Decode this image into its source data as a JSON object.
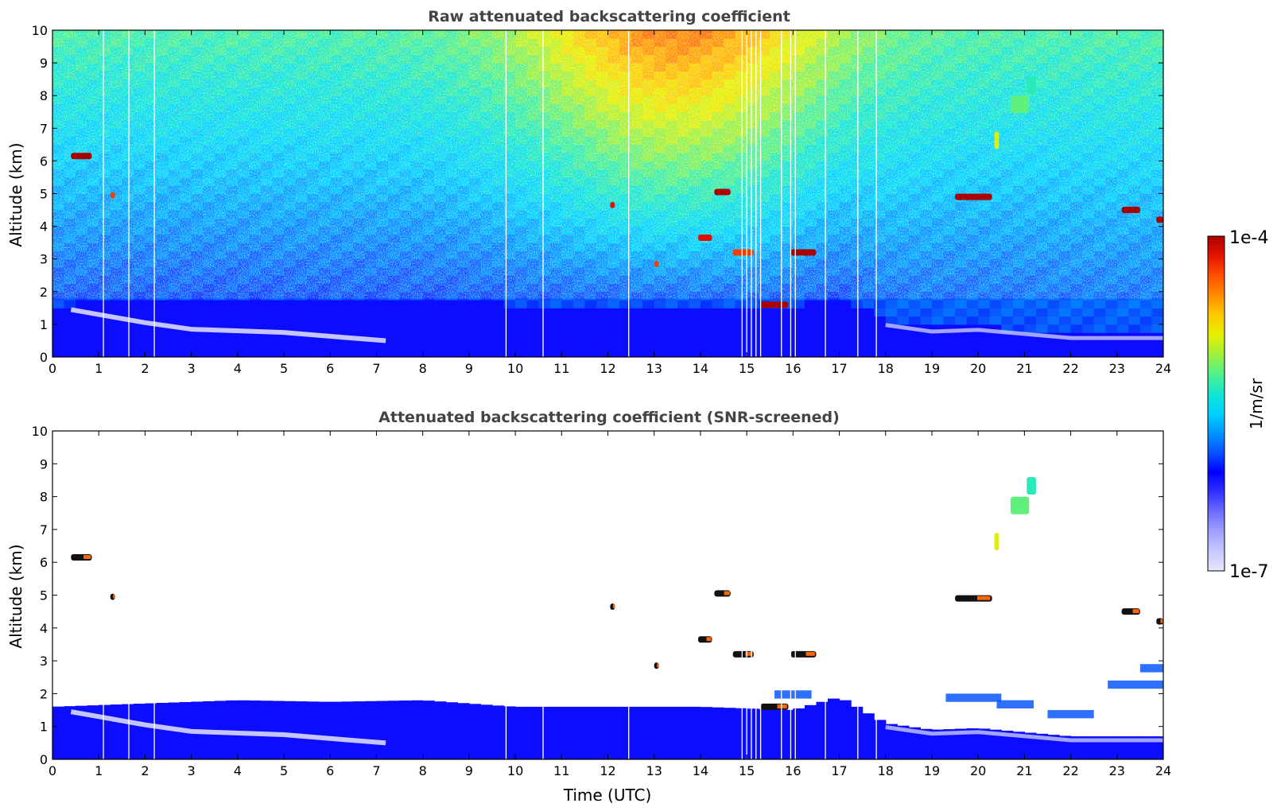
{
  "figure": {
    "colorbar": {
      "label": "1/m/sr",
      "max_label": "1e-4",
      "min_label": "1e-7",
      "scale": "log",
      "colormap": "jet-like with white-blue low end",
      "stops": [
        "#e6e6ff",
        "#c8c8ff",
        "#a0a0ff",
        "#6e6eff",
        "#3232ff",
        "#0000ff",
        "#0a50ff",
        "#0096ff",
        "#00d2ff",
        "#14e6d2",
        "#50f08c",
        "#a0f03c",
        "#e6f000",
        "#ffc800",
        "#ff8c00",
        "#ff5000",
        "#e61400",
        "#aa0000"
      ]
    }
  },
  "chart_data": [
    {
      "type": "heatmap",
      "title": "Raw attenuated backscattering coefficient",
      "xlabel": "",
      "ylabel": "Altitude (km)",
      "xlim": [
        0,
        24
      ],
      "ylim": [
        0,
        10
      ],
      "x_ticks": [
        "0",
        "1",
        "2",
        "3",
        "4",
        "5",
        "6",
        "7",
        "8",
        "9",
        "10",
        "11",
        "12",
        "13",
        "14",
        "15",
        "16",
        "17",
        "18",
        "19",
        "20",
        "21",
        "22",
        "23",
        "24"
      ],
      "y_ticks": [
        "0",
        "1",
        "2",
        "3",
        "4",
        "5",
        "6",
        "7",
        "8",
        "9",
        "10"
      ],
      "boundary_layer_top_km": [
        [
          0.0,
          1.6
        ],
        [
          2,
          1.7
        ],
        [
          4,
          1.8
        ],
        [
          6,
          1.75
        ],
        [
          8,
          1.8
        ],
        [
          10,
          1.6
        ],
        [
          12,
          1.6
        ],
        [
          14,
          1.6
        ],
        [
          16,
          1.5
        ],
        [
          17,
          1.9
        ],
        [
          18,
          1.1
        ],
        [
          19,
          0.9
        ],
        [
          20,
          0.95
        ],
        [
          22,
          0.7
        ],
        [
          24,
          0.7
        ]
      ],
      "residual_layer_km": [
        [
          0.4,
          1.45
        ],
        [
          2,
          1.05
        ],
        [
          3,
          0.85
        ],
        [
          5,
          0.75
        ],
        [
          6.3,
          0.6
        ],
        [
          7.2,
          0.5
        ]
      ],
      "data_gaps_utc": [
        1.1,
        1.65,
        2.2,
        9.8,
        10.6,
        12.45,
        14.9,
        15.0,
        15.1,
        15.2,
        15.3,
        15.75,
        15.95,
        16.05,
        16.7,
        17.4,
        17.8
      ],
      "clouds": [
        {
          "t0": 0.4,
          "t1": 0.85,
          "z": 6.15,
          "level": 1.0
        },
        {
          "t0": 1.25,
          "t1": 1.35,
          "z": 4.95,
          "level": 0.9
        },
        {
          "t0": 12.05,
          "t1": 12.15,
          "z": 4.65,
          "level": 0.95
        },
        {
          "t0": 13.0,
          "t1": 13.1,
          "z": 2.85,
          "level": 0.9
        },
        {
          "t0": 13.95,
          "t1": 14.25,
          "z": 3.65,
          "level": 0.95
        },
        {
          "t0": 14.3,
          "t1": 14.65,
          "z": 5.05,
          "level": 1.0
        },
        {
          "t0": 14.7,
          "t1": 15.15,
          "z": 3.2,
          "level": 0.9
        },
        {
          "t0": 15.3,
          "t1": 15.9,
          "z": 1.6,
          "level": 1.0
        },
        {
          "t0": 15.95,
          "t1": 16.5,
          "z": 3.2,
          "level": 1.0
        },
        {
          "t0": 19.5,
          "t1": 20.3,
          "z": 4.9,
          "level": 1.0
        },
        {
          "t0": 23.1,
          "t1": 23.5,
          "z": 4.5,
          "level": 1.0
        },
        {
          "t0": 23.85,
          "t1": 24.0,
          "z": 4.2,
          "level": 1.0
        },
        {
          "t0": 20.35,
          "t1": 20.45,
          "z": 6.8,
          "level": 0.7
        },
        {
          "t0": 20.7,
          "t1": 21.1,
          "z": 7.9,
          "level": 0.6
        },
        {
          "t0": 21.05,
          "t1": 21.25,
          "z": 8.5,
          "level": 0.55
        }
      ]
    },
    {
      "type": "heatmap",
      "title": "Attenuated backscattering coefficient (SNR-screened)",
      "xlabel": "Time (UTC)",
      "ylabel": "Altitude (km)",
      "xlim": [
        0,
        24
      ],
      "ylim": [
        0,
        10
      ],
      "x_ticks": [
        "0",
        "1",
        "2",
        "3",
        "4",
        "5",
        "6",
        "7",
        "8",
        "9",
        "10",
        "11",
        "12",
        "13",
        "14",
        "15",
        "16",
        "17",
        "18",
        "19",
        "20",
        "21",
        "22",
        "23",
        "24"
      ],
      "y_ticks": [
        "0",
        "1",
        "2",
        "3",
        "4",
        "5",
        "6",
        "7",
        "8",
        "9",
        "10"
      ],
      "screened_threshold_note": "low-SNR pixels masked to white"
    }
  ]
}
